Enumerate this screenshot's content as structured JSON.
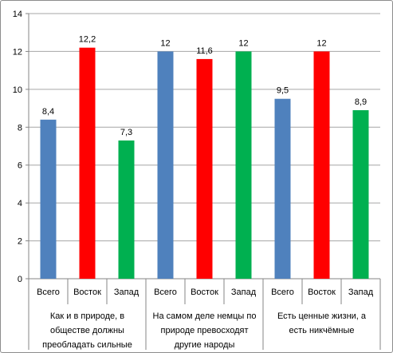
{
  "chart_data": {
    "type": "bar",
    "title": "",
    "xlabel": "",
    "ylabel": "",
    "ylim": [
      0,
      14
    ],
    "yticks": [
      "0",
      "2",
      "4",
      "6",
      "8",
      "10",
      "12",
      "14"
    ],
    "grid": true,
    "legend": "none",
    "groups": [
      {
        "label_lines": [
          "Как и в природе, в",
          "обществе должны",
          "преобладать сильные"
        ],
        "bars": [
          {
            "category": "Всего",
            "value": 8.4,
            "label": "8,4",
            "color": "#4f81bd"
          },
          {
            "category": "Восток",
            "value": 12.2,
            "label": "12,2",
            "color": "#ff0000"
          },
          {
            "category": "Запад",
            "value": 7.3,
            "label": "7,3",
            "color": "#00b050"
          }
        ]
      },
      {
        "label_lines": [
          "На самом деле немцы по",
          "природе превосходят",
          "другие народы"
        ],
        "bars": [
          {
            "category": "Всего",
            "value": 12,
            "label": "12",
            "color": "#4f81bd"
          },
          {
            "category": "Восток",
            "value": 11.6,
            "label": "11,6",
            "color": "#ff0000"
          },
          {
            "category": "Запад",
            "value": 12,
            "label": "12",
            "color": "#00b050"
          }
        ]
      },
      {
        "label_lines": [
          "Есть ценные жизни, а",
          "есть никчёмные"
        ],
        "bars": [
          {
            "category": "Всего",
            "value": 9.5,
            "label": "9,5",
            "color": "#4f81bd"
          },
          {
            "category": "Восток",
            "value": 12,
            "label": "12",
            "color": "#ff0000"
          },
          {
            "category": "Запад",
            "value": 8.9,
            "label": "8,9",
            "color": "#00b050"
          }
        ]
      }
    ]
  }
}
